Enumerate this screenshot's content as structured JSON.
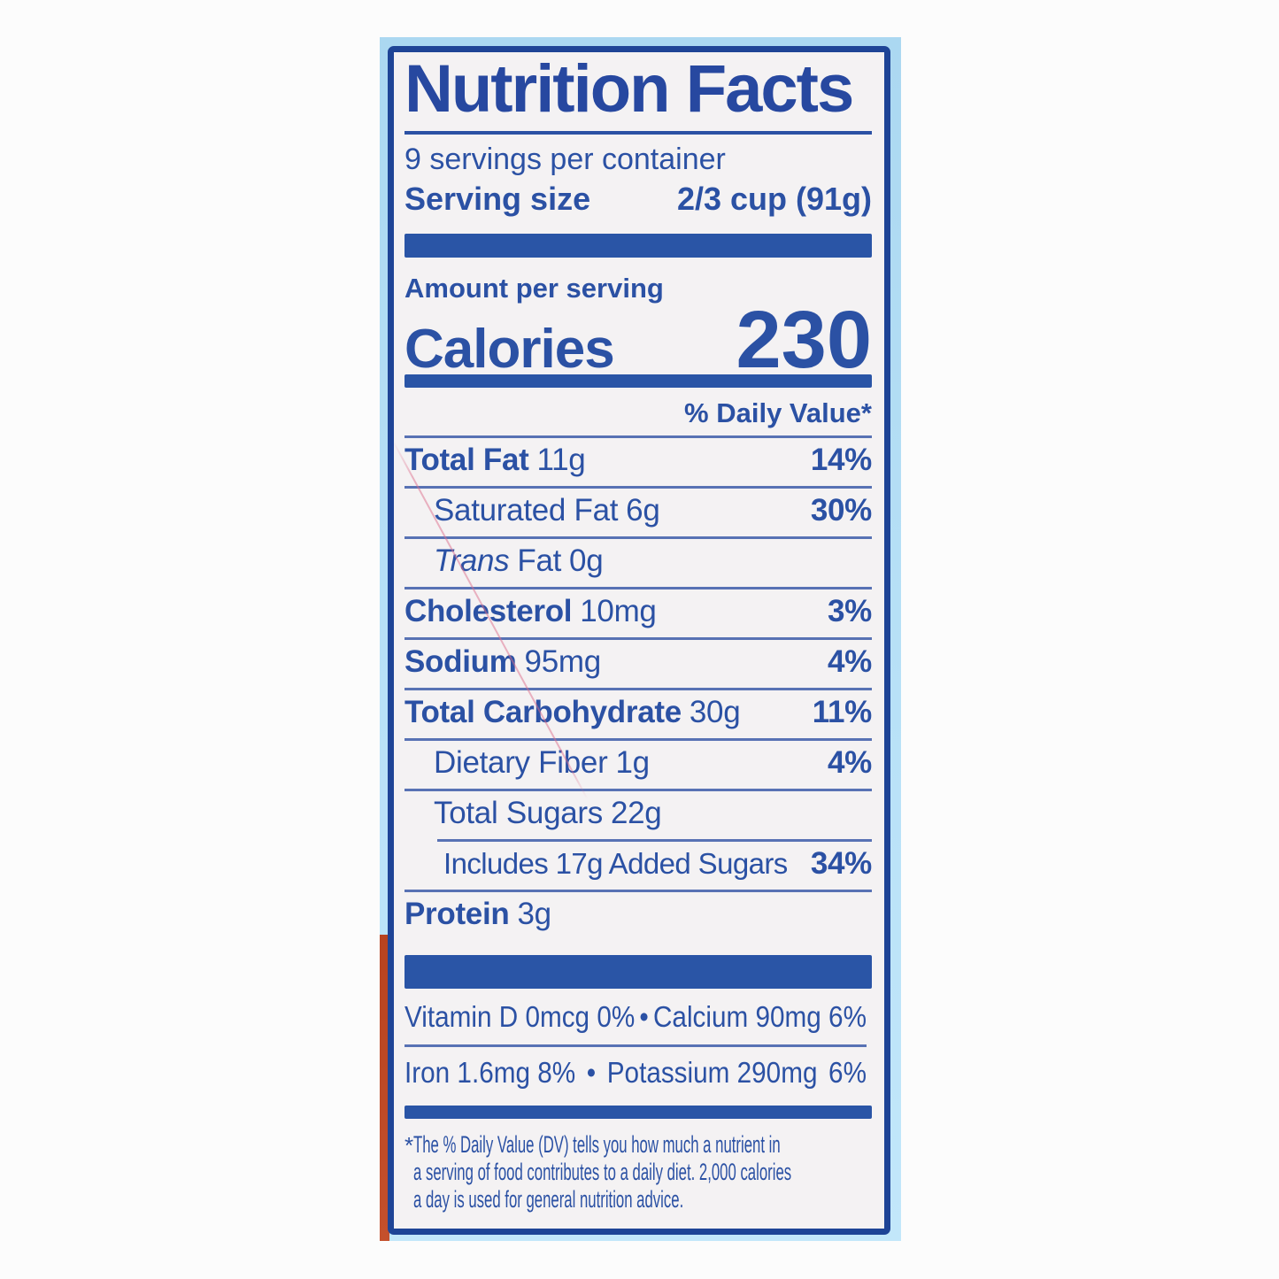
{
  "colors": {
    "text_blue": "#2b51a4",
    "border_blue": "#1e4496",
    "bar_blue": "#2a55a6",
    "thin_rule_blue": "#5872b4",
    "package_light_blue": "#b3def5",
    "package_edge_red": "#bf4a28",
    "label_background": "#f4f2f3",
    "scratch_pink": "#dd6e8c"
  },
  "label": {
    "title": "Nutrition Facts",
    "servings_per_container": "9 servings per container",
    "serving_size": {
      "label": "Serving size",
      "value": "2/3 cup (91g)"
    },
    "amount_per_serving": "Amount per serving",
    "calories": {
      "label": "Calories",
      "value": "230"
    },
    "daily_value_header": "% Daily Value*",
    "rows": [
      {
        "name": "Total Fat",
        "amount": "11g",
        "dv": "14%"
      },
      {
        "name": "Saturated Fat",
        "amount": "6g",
        "dv": "30%"
      },
      {
        "name_italic": "Trans",
        "name": "Fat",
        "amount": "0g",
        "dv": ""
      },
      {
        "name": "Cholesterol",
        "amount": "10mg",
        "dv": "3%"
      },
      {
        "name": "Sodium",
        "amount": "95mg",
        "dv": "4%"
      },
      {
        "name": "Total Carbohydrate",
        "amount": "30g",
        "dv": "11%"
      },
      {
        "name": "Dietary Fiber",
        "amount": "1g",
        "dv": "4%"
      },
      {
        "name": "Total Sugars",
        "amount": "22g",
        "dv": ""
      },
      {
        "name": "Includes 17g Added Sugars",
        "amount": "",
        "dv": "34%"
      },
      {
        "name": "Protein",
        "amount": "3g",
        "dv": ""
      }
    ],
    "micronutrients": [
      {
        "segments": [
          "Vitamin D 0mcg 0%",
          "•",
          "Calcium 90mg 6%"
        ]
      },
      {
        "segments": [
          "Iron 1.6mg 8%",
          "•",
          "Potassium 290mg",
          "6%"
        ]
      }
    ],
    "footnote": {
      "marker": "*",
      "lines": [
        "The % Daily Value (DV) tells you how much a nutrient in",
        "a serving of food contributes to a daily diet. 2,000 calories",
        "a day is used for general nutrition advice."
      ]
    }
  }
}
